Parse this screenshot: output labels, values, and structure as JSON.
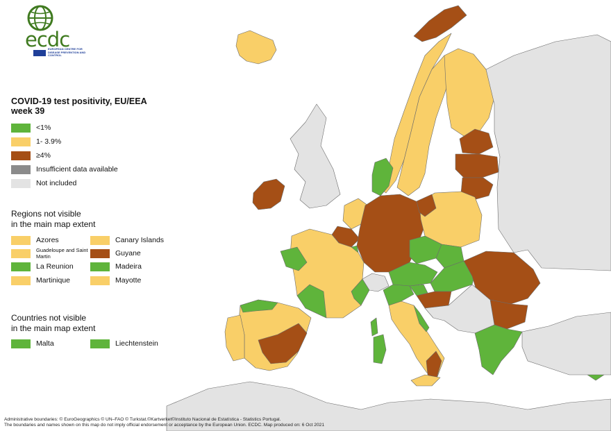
{
  "colors": {
    "green": "#5fb43b",
    "yellow": "#f9cf68",
    "brown": "#a54f16",
    "insufficient": "#8b8b8b",
    "not_included": "#e3e3e3",
    "sea": "#ffffff",
    "border": "#6b6b6b",
    "logo_green": "#3f7a1f",
    "logo_blue": "#1f3f99"
  },
  "logo": {
    "text": "ecdc",
    "subtitle": "European Centre for Disease Prevention and Control",
    "icon": "globe-icon"
  },
  "legend": {
    "title_line1": "COVID-19 test positivity, EU/EEA",
    "title_line2": "week 39",
    "items": [
      {
        "label": "<1%",
        "color_key": "green"
      },
      {
        "label": "1- 3.9%",
        "color_key": "yellow"
      },
      {
        "label": "≥4%",
        "color_key": "brown"
      },
      {
        "label": "Insufficient data available",
        "color_key": "insufficient"
      },
      {
        "label": "Not included",
        "color_key": "not_included"
      }
    ]
  },
  "regions_section": {
    "title_line1": "Regions not visible",
    "title_line2": "in the main map extent",
    "items": [
      {
        "label": "Azores",
        "color_key": "yellow"
      },
      {
        "label": "Canary Islands",
        "color_key": "yellow"
      },
      {
        "label": "Guadeloupe and Saint Martin",
        "color_key": "yellow"
      },
      {
        "label": "Guyane",
        "color_key": "brown"
      },
      {
        "label": "La Reunion",
        "color_key": "green"
      },
      {
        "label": "Madeira",
        "color_key": "green"
      },
      {
        "label": "Martinique",
        "color_key": "yellow"
      },
      {
        "label": "Mayotte",
        "color_key": "yellow"
      }
    ]
  },
  "countries_section": {
    "title_line1": "Countries not visible",
    "title_line2": "in the main map extent",
    "items": [
      {
        "label": "Malta",
        "color_key": "green"
      },
      {
        "label": "Liechtenstein",
        "color_key": "green"
      }
    ]
  },
  "footer": {
    "line1": "Administrative boundaries: © EuroGeographics © UN–FAO © Turkstat.©Kartverket©Instituto Nacional de Estatística - Statistics Portugal.",
    "line2": "The boundaries and names shown on this map do not imply official endorsement or acceptance by the European Union. ECDC. Map produced on: 6 Oct 2021"
  },
  "map_regions": [
    {
      "name": "Iceland",
      "category": "yellow"
    },
    {
      "name": "Ireland",
      "category": "brown"
    },
    {
      "name": "Norway",
      "category": "yellow"
    },
    {
      "name": "Norway (north)",
      "category": "brown"
    },
    {
      "name": "Sweden",
      "category": "yellow"
    },
    {
      "name": "Finland",
      "category": "yellow"
    },
    {
      "name": "Estonia",
      "category": "brown"
    },
    {
      "name": "Latvia",
      "category": "brown"
    },
    {
      "name": "Lithuania",
      "category": "brown"
    },
    {
      "name": "Denmark",
      "category": "green"
    },
    {
      "name": "Netherlands",
      "category": "yellow"
    },
    {
      "name": "Belgium",
      "category": "brown"
    },
    {
      "name": "Luxembourg",
      "category": "green"
    },
    {
      "name": "Germany",
      "category": "brown"
    },
    {
      "name": "Poland",
      "category": "yellow"
    },
    {
      "name": "Poland (west)",
      "category": "brown"
    },
    {
      "name": "Czechia",
      "category": "green"
    },
    {
      "name": "Slovakia",
      "category": "green"
    },
    {
      "name": "Austria",
      "category": "green"
    },
    {
      "name": "Hungary",
      "category": "green"
    },
    {
      "name": "Slovenia",
      "category": "green"
    },
    {
      "name": "Croatia",
      "category": "brown"
    },
    {
      "name": "Romania",
      "category": "brown"
    },
    {
      "name": "Bulgaria",
      "category": "brown"
    },
    {
      "name": "Greece",
      "category": "green"
    },
    {
      "name": "Cyprus",
      "category": "green"
    },
    {
      "name": "France",
      "category": "yellow"
    },
    {
      "name": "France (west)",
      "category": "green"
    },
    {
      "name": "France (south-west)",
      "category": "green"
    },
    {
      "name": "France (south-east)",
      "category": "green"
    },
    {
      "name": "Corsica",
      "category": "green"
    },
    {
      "name": "Spain",
      "category": "yellow"
    },
    {
      "name": "Spain (centre)",
      "category": "brown"
    },
    {
      "name": "Spain (north)",
      "category": "green"
    },
    {
      "name": "Portugal",
      "category": "yellow"
    },
    {
      "name": "Italy",
      "category": "yellow"
    },
    {
      "name": "Italy (north)",
      "category": "green"
    },
    {
      "name": "Italy (east)",
      "category": "green"
    },
    {
      "name": "Italy (south)",
      "category": "brown"
    },
    {
      "name": "Sardinia",
      "category": "green"
    },
    {
      "name": "Sicily",
      "category": "yellow"
    },
    {
      "name": "Switzerland",
      "category": "not_included"
    },
    {
      "name": "United Kingdom",
      "category": "not_included"
    },
    {
      "name": "Eastern Europe",
      "category": "not_included"
    },
    {
      "name": "North Africa",
      "category": "not_included"
    },
    {
      "name": "Balkans",
      "category": "not_included"
    },
    {
      "name": "Turkey",
      "category": "not_included"
    }
  ]
}
